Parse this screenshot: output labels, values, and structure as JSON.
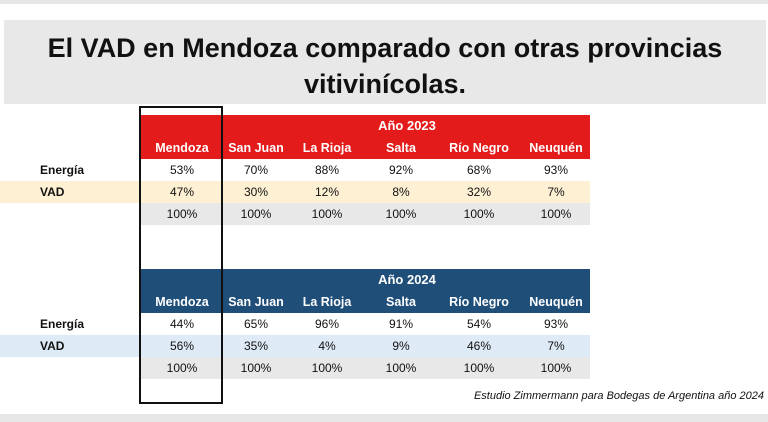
{
  "title": {
    "line1": "El VAD en Mendoza comparado con otras provincias",
    "line2": "vitivinícolas."
  },
  "colors": {
    "header_2023": "#e31b1b",
    "header_2024": "#1f4e79",
    "vad_band_2023": "#fdf0d3",
    "vad_band_2024": "#deeaf6",
    "total_band": "#e8e8e8"
  },
  "columns": [
    "Mendoza",
    "San Juan",
    "La Rioja",
    "Salta",
    "Río Negro",
    "Neuquén"
  ],
  "table_2023": {
    "year_label": "Año 2023",
    "rows": [
      {
        "label": "Energía",
        "values": [
          "53%",
          "70%",
          "88%",
          "92%",
          "68%",
          "93%"
        ]
      },
      {
        "label": "VAD",
        "values": [
          "47%",
          "30%",
          "12%",
          "8%",
          "32%",
          "7%"
        ]
      },
      {
        "label": "",
        "values": [
          "100%",
          "100%",
          "100%",
          "100%",
          "100%",
          "100%"
        ]
      }
    ]
  },
  "table_2024": {
    "year_label": "Año 2024",
    "rows": [
      {
        "label": "Energía",
        "values": [
          "44%",
          "65%",
          "96%",
          "91%",
          "54%",
          "93%"
        ]
      },
      {
        "label": "VAD",
        "values": [
          "56%",
          "35%",
          "4%",
          "9%",
          "46%",
          "7%"
        ]
      },
      {
        "label": "",
        "values": [
          "100%",
          "100%",
          "100%",
          "100%",
          "100%",
          "100%"
        ]
      }
    ]
  },
  "source": "Estudio Zimmermann para Bodegas de Argentina año 2024"
}
